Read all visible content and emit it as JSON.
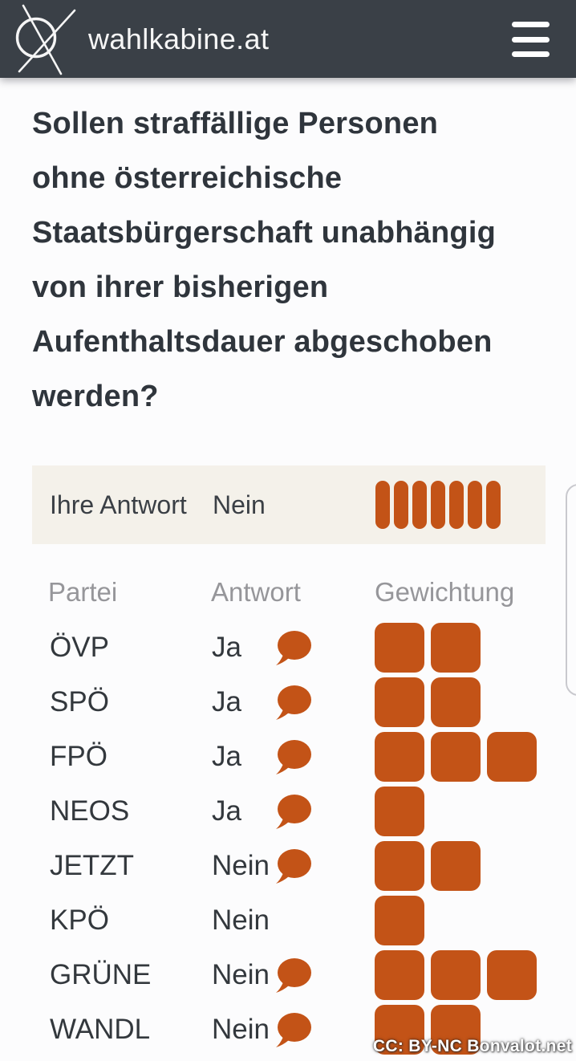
{
  "colors": {
    "accent": "#c35317",
    "header_bg": "#3a4047",
    "text_dark": "#2f353c",
    "text_gray": "#96969a",
    "answer_box_bg": "#f4f1ea"
  },
  "header": {
    "brand": "wahlkabine.at",
    "logo_icon": "crossed-circle-vote-mark",
    "menu_icon": "hamburger-menu"
  },
  "question": {
    "text": "Sollen straffällige Personen ohne österreichische Staatsbürgerschaft unabhängig von ihrer bisherigen Aufenthaltsdauer abgeschoben werden?"
  },
  "your_answer": {
    "label": "Ihre Antwort",
    "value": "Nein",
    "weight_pills": 7
  },
  "table": {
    "columns": [
      "Partei",
      "Antwort",
      "Gewichtung"
    ],
    "rows": [
      {
        "party": "ÖVP",
        "answer": "Ja",
        "has_comment": true,
        "weight": 2
      },
      {
        "party": "SPÖ",
        "answer": "Ja",
        "has_comment": true,
        "weight": 2
      },
      {
        "party": "FPÖ",
        "answer": "Ja",
        "has_comment": true,
        "weight": 3
      },
      {
        "party": "NEOS",
        "answer": "Ja",
        "has_comment": true,
        "weight": 1
      },
      {
        "party": "JETZT",
        "answer": "Nein",
        "has_comment": true,
        "weight": 2
      },
      {
        "party": "KPÖ",
        "answer": "Nein",
        "has_comment": false,
        "weight": 1
      },
      {
        "party": "GRÜNE",
        "answer": "Nein",
        "has_comment": true,
        "weight": 3
      },
      {
        "party": "WANDL",
        "answer": "Nein",
        "has_comment": true,
        "weight": 2
      }
    ]
  },
  "watermark": {
    "text": "CC: BY-NC Bonvalot.net"
  }
}
